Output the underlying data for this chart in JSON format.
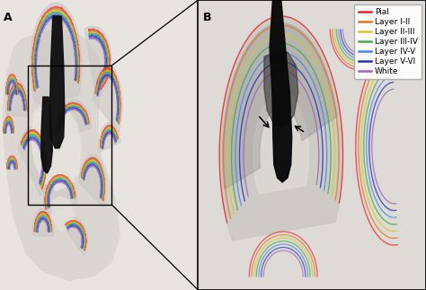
{
  "figure_width": 4.74,
  "figure_height": 3.23,
  "dpi": 100,
  "bg_color": "#e8e4e0",
  "panel_a_label": "A",
  "panel_b_label": "B",
  "legend_entries": [
    {
      "label": "Pial",
      "color": "#ee2222"
    },
    {
      "label": "Layer I-II",
      "color": "#dd7722"
    },
    {
      "label": "Layer II-III",
      "color": "#cccc22"
    },
    {
      "label": "Layer III-IV",
      "color": "#44aa44"
    },
    {
      "label": "Layer IV-V",
      "color": "#4488ee"
    },
    {
      "label": "Layer V-VI",
      "color": "#2233bb"
    },
    {
      "label": "White",
      "color": "#9966bb"
    }
  ],
  "label_fontsize": 9,
  "legend_fontsize": 6.5
}
